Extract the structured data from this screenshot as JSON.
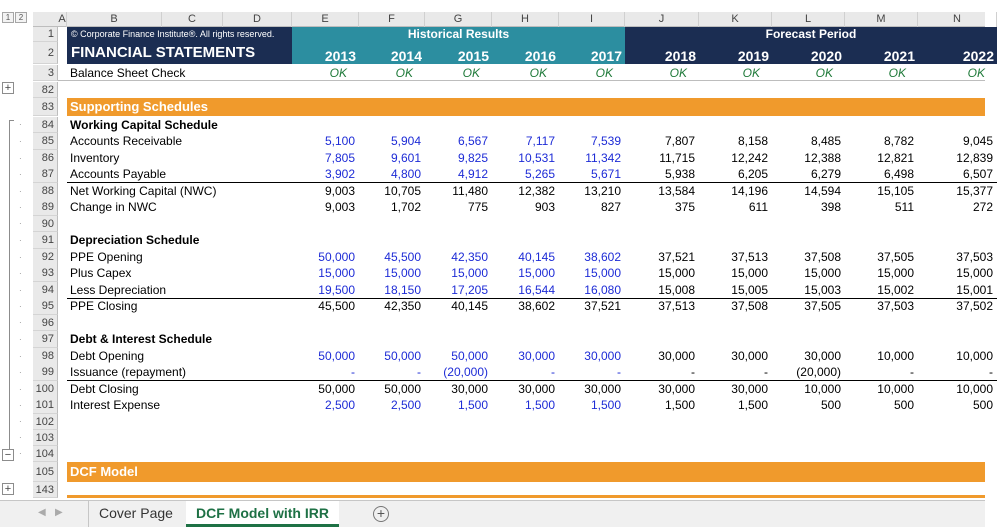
{
  "outline": {
    "levels": [
      "1",
      "2"
    ],
    "collapsed_symbol": "+",
    "expanded_symbol": "−"
  },
  "columns": [
    "A",
    "B",
    "C",
    "D",
    "E",
    "F",
    "G",
    "H",
    "I",
    "J",
    "K",
    "L",
    "M",
    "N"
  ],
  "rows": {
    "r1": {
      "num": "1",
      "copyright": "© Corporate Finance Institute®. All rights reserved.",
      "historical": "Historical Results",
      "forecast": "Forecast Period"
    },
    "r2": {
      "num": "2",
      "title": "FINANCIAL STATEMENTS",
      "years": [
        "2013",
        "2014",
        "2015",
        "2016",
        "2017",
        "2018",
        "2019",
        "2020",
        "2021",
        "2022"
      ]
    },
    "r3": {
      "num": "3",
      "label": "Balance Sheet Check",
      "values": [
        "OK",
        "OK",
        "OK",
        "OK",
        "OK",
        "OK",
        "OK",
        "OK",
        "OK",
        "OK"
      ]
    },
    "r82": {
      "num": "82"
    },
    "r83": {
      "num": "83",
      "label": "Supporting Schedules"
    },
    "r84": {
      "num": "84",
      "label": "Working Capital Schedule"
    },
    "r85": {
      "num": "85",
      "label": "Accounts Receivable",
      "values": [
        "5,100",
        "5,904",
        "6,567",
        "7,117",
        "7,539",
        "7,807",
        "8,158",
        "8,485",
        "8,782",
        "9,045"
      ]
    },
    "r86": {
      "num": "86",
      "label": "Inventory",
      "values": [
        "7,805",
        "9,601",
        "9,825",
        "10,531",
        "11,342",
        "11,715",
        "12,242",
        "12,388",
        "12,821",
        "12,839"
      ]
    },
    "r87": {
      "num": "87",
      "label": "Accounts Payable",
      "values": [
        "3,902",
        "4,800",
        "4,912",
        "5,265",
        "5,671",
        "5,938",
        "6,205",
        "6,279",
        "6,498",
        "6,507"
      ]
    },
    "r88": {
      "num": "88",
      "label": "Net Working Capital (NWC)",
      "values": [
        "9,003",
        "10,705",
        "11,480",
        "12,382",
        "13,210",
        "13,584",
        "14,196",
        "14,594",
        "15,105",
        "15,377"
      ]
    },
    "r89": {
      "num": "89",
      "label": "Change in NWC",
      "values": [
        "9,003",
        "1,702",
        "775",
        "903",
        "827",
        "375",
        "611",
        "398",
        "511",
        "272"
      ]
    },
    "r90": {
      "num": "90"
    },
    "r91": {
      "num": "91",
      "label": "Depreciation Schedule"
    },
    "r92": {
      "num": "92",
      "label": "PPE Opening",
      "values": [
        "50,000",
        "45,500",
        "42,350",
        "40,145",
        "38,602",
        "37,521",
        "37,513",
        "37,508",
        "37,505",
        "37,503"
      ]
    },
    "r93": {
      "num": "93",
      "label": "Plus Capex",
      "values": [
        "15,000",
        "15,000",
        "15,000",
        "15,000",
        "15,000",
        "15,000",
        "15,000",
        "15,000",
        "15,000",
        "15,000"
      ]
    },
    "r94": {
      "num": "94",
      "label": "Less Depreciation",
      "values": [
        "19,500",
        "18,150",
        "17,205",
        "16,544",
        "16,080",
        "15,008",
        "15,005",
        "15,003",
        "15,002",
        "15,001"
      ]
    },
    "r95": {
      "num": "95",
      "label": "PPE Closing",
      "values": [
        "45,500",
        "42,350",
        "40,145",
        "38,602",
        "37,521",
        "37,513",
        "37,508",
        "37,505",
        "37,503",
        "37,502"
      ]
    },
    "r96": {
      "num": "96"
    },
    "r97": {
      "num": "97",
      "label": "Debt & Interest Schedule"
    },
    "r98": {
      "num": "98",
      "label": "Debt Opening",
      "values": [
        "50,000",
        "50,000",
        "50,000",
        "30,000",
        "30,000",
        "30,000",
        "30,000",
        "30,000",
        "10,000",
        "10,000"
      ]
    },
    "r99": {
      "num": "99",
      "label": "Issuance (repayment)",
      "values": [
        "-",
        "-",
        "(20,000)",
        "-",
        "-",
        "-",
        "-",
        "(20,000)",
        "-",
        "-"
      ]
    },
    "r100": {
      "num": "100",
      "label": "Debt Closing",
      "values": [
        "50,000",
        "50,000",
        "30,000",
        "30,000",
        "30,000",
        "30,000",
        "30,000",
        "10,000",
        "10,000",
        "10,000"
      ]
    },
    "r101": {
      "num": "101",
      "label": "Interest Expense",
      "values": [
        "2,500",
        "2,500",
        "1,500",
        "1,500",
        "1,500",
        "1,500",
        "1,500",
        "500",
        "500",
        "500"
      ]
    },
    "r102": {
      "num": "102"
    },
    "r103": {
      "num": "103"
    },
    "r104": {
      "num": "104"
    },
    "r105": {
      "num": "105",
      "label": "DCF Model"
    },
    "r143": {
      "num": "143"
    }
  },
  "tabs": [
    "Cover Page",
    "DCF Model with IRR"
  ],
  "active_tab": "DCF Model with IRR",
  "add_sheet_symbol": "+",
  "colors": {
    "navy": "#1b2d52",
    "teal": "#2c8ea0",
    "orange": "#f09a2c",
    "input_blue": "#1d2bd6",
    "ok_green": "#1f7a3a",
    "tab_green": "#1e7145"
  }
}
